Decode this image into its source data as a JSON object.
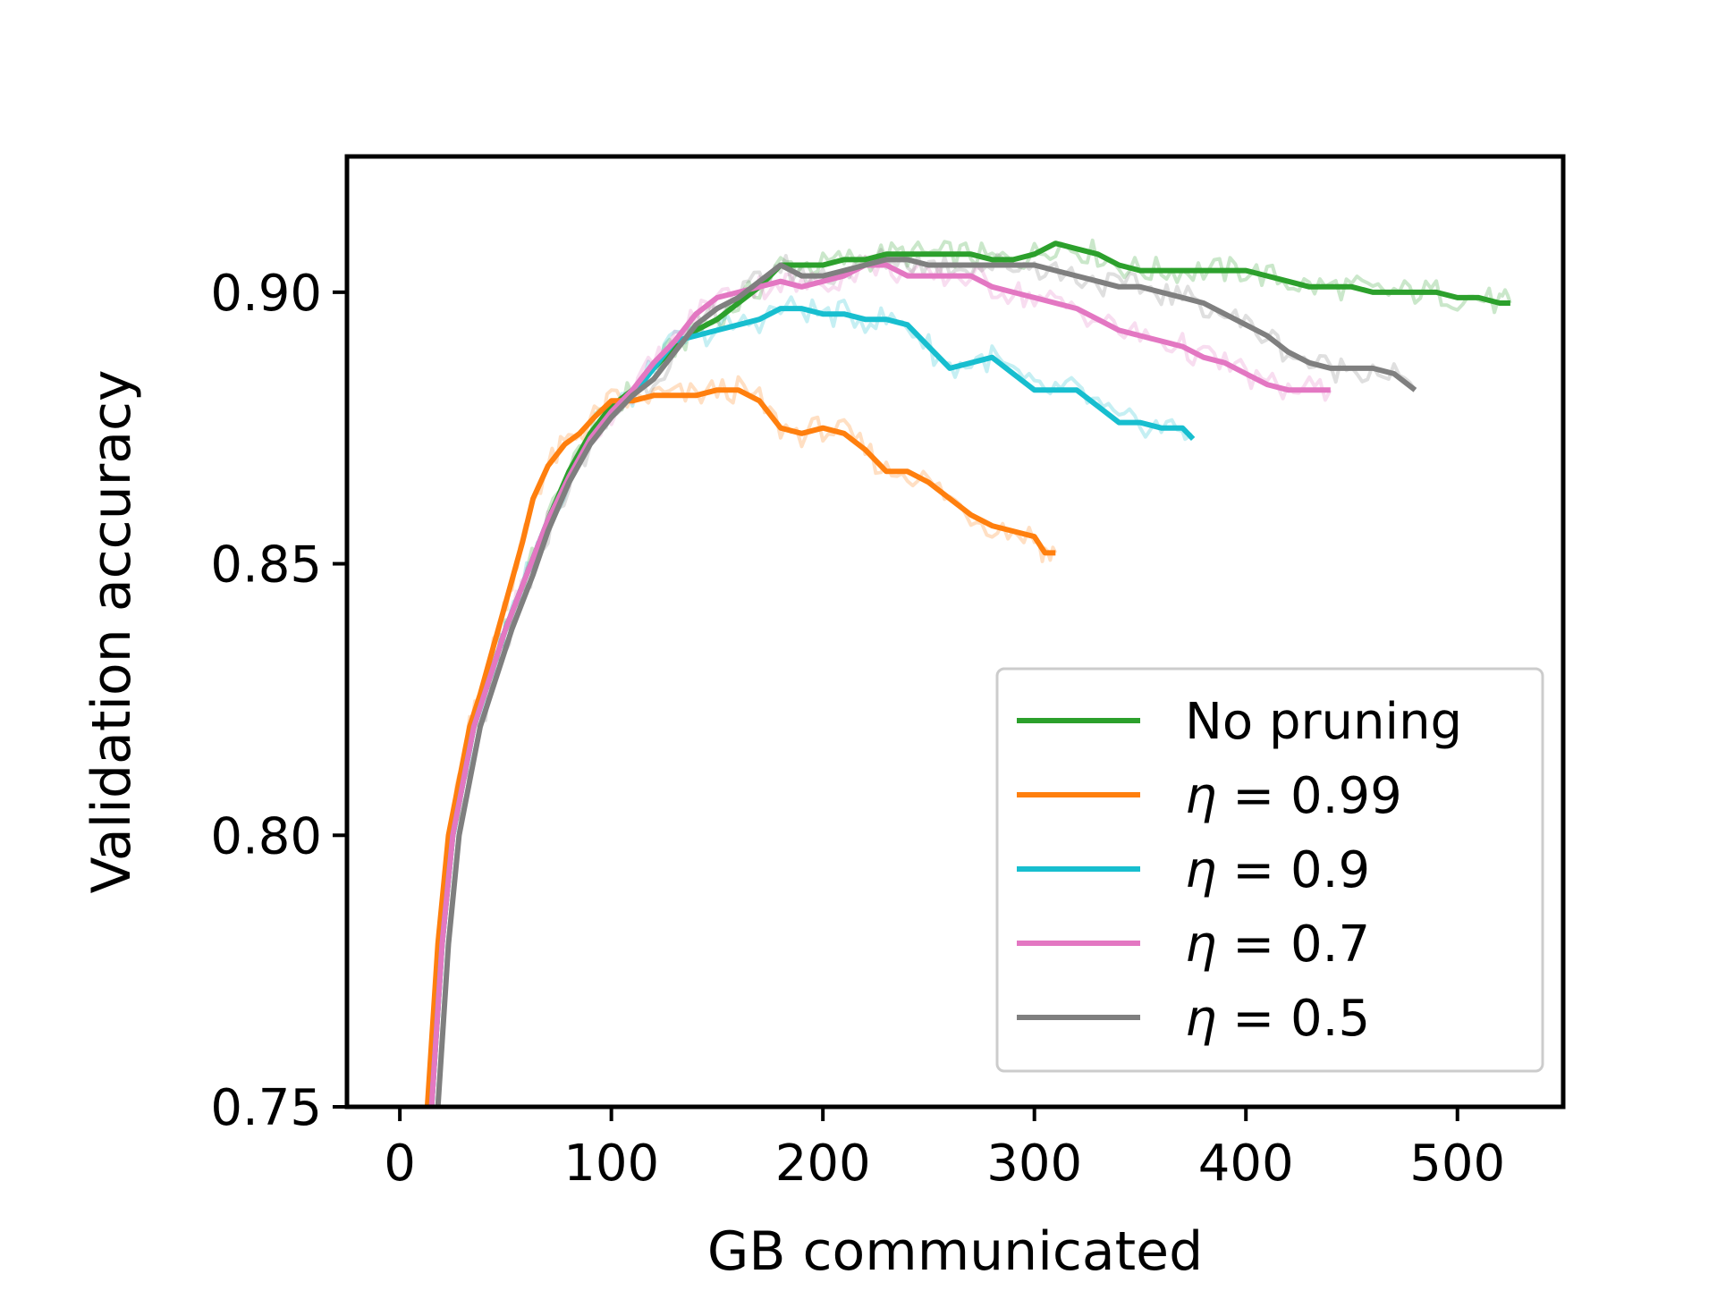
{
  "chart_data": {
    "type": "line",
    "title": "",
    "xlabel": "GB communicated",
    "ylabel": "Validation accuracy",
    "xlim": [
      -25,
      550
    ],
    "ylim": [
      0.75,
      0.925
    ],
    "xticks": [
      0,
      100,
      200,
      300,
      400,
      500
    ],
    "xtick_labels": [
      "0",
      "100",
      "200",
      "300",
      "400",
      "500"
    ],
    "yticks": [
      0.75,
      0.8,
      0.85,
      0.9
    ],
    "ytick_labels": [
      "0.75",
      "0.80",
      "0.85",
      "0.90"
    ],
    "grid": false,
    "legend_position": "lower right",
    "series": [
      {
        "name": "No pruning",
        "legend_prefix": "",
        "legend_value": "No pruning",
        "color": "#2ca02c",
        "x": [
          15,
          20,
          25,
          30,
          35,
          40,
          45,
          50,
          55,
          60,
          70,
          80,
          90,
          100,
          110,
          120,
          130,
          140,
          150,
          160,
          170,
          180,
          190,
          200,
          210,
          220,
          230,
          240,
          250,
          260,
          270,
          280,
          290,
          300,
          310,
          320,
          330,
          340,
          350,
          360,
          370,
          380,
          390,
          400,
          410,
          420,
          430,
          440,
          450,
          460,
          470,
          480,
          490,
          500,
          510,
          520,
          525
        ],
        "y": [
          0.75,
          0.78,
          0.8,
          0.81,
          0.82,
          0.826,
          0.832,
          0.838,
          0.843,
          0.848,
          0.858,
          0.867,
          0.874,
          0.879,
          0.882,
          0.886,
          0.89,
          0.893,
          0.895,
          0.898,
          0.901,
          0.905,
          0.905,
          0.905,
          0.906,
          0.906,
          0.907,
          0.907,
          0.907,
          0.907,
          0.907,
          0.906,
          0.906,
          0.907,
          0.909,
          0.908,
          0.907,
          0.905,
          0.904,
          0.904,
          0.904,
          0.904,
          0.904,
          0.904,
          0.903,
          0.902,
          0.901,
          0.901,
          0.901,
          0.9,
          0.9,
          0.9,
          0.9,
          0.899,
          0.899,
          0.898,
          0.898
        ]
      },
      {
        "name": "η = 0.99",
        "legend_prefix": "η",
        "legend_value": " = 0.99",
        "color": "#ff7f0e",
        "x": [
          13,
          18,
          23,
          28,
          33,
          38,
          43,
          48,
          53,
          58,
          63,
          70,
          78,
          85,
          92,
          100,
          110,
          120,
          130,
          140,
          150,
          160,
          170,
          180,
          190,
          200,
          210,
          220,
          230,
          240,
          250,
          260,
          270,
          280,
          290,
          300,
          305,
          310
        ],
        "y": [
          0.75,
          0.78,
          0.8,
          0.81,
          0.82,
          0.826,
          0.833,
          0.84,
          0.847,
          0.854,
          0.862,
          0.868,
          0.872,
          0.874,
          0.877,
          0.88,
          0.88,
          0.881,
          0.881,
          0.881,
          0.882,
          0.882,
          0.88,
          0.875,
          0.874,
          0.875,
          0.874,
          0.871,
          0.867,
          0.867,
          0.865,
          0.862,
          0.859,
          0.857,
          0.856,
          0.855,
          0.852,
          0.852
        ]
      },
      {
        "name": "η = 0.9",
        "legend_prefix": "η",
        "legend_value": " = 0.9",
        "color": "#17becf",
        "x": [
          15,
          20,
          25,
          30,
          35,
          40,
          45,
          50,
          55,
          60,
          70,
          80,
          90,
          100,
          110,
          120,
          130,
          140,
          150,
          160,
          170,
          180,
          190,
          200,
          210,
          220,
          230,
          240,
          250,
          260,
          270,
          280,
          290,
          300,
          310,
          320,
          330,
          340,
          350,
          360,
          370,
          375
        ],
        "y": [
          0.75,
          0.78,
          0.8,
          0.81,
          0.82,
          0.826,
          0.832,
          0.838,
          0.843,
          0.848,
          0.858,
          0.866,
          0.873,
          0.878,
          0.881,
          0.886,
          0.891,
          0.892,
          0.893,
          0.894,
          0.895,
          0.897,
          0.897,
          0.896,
          0.896,
          0.895,
          0.895,
          0.894,
          0.89,
          0.886,
          0.887,
          0.888,
          0.885,
          0.882,
          0.882,
          0.882,
          0.879,
          0.876,
          0.876,
          0.875,
          0.875,
          0.873
        ]
      },
      {
        "name": "η = 0.7",
        "legend_prefix": "η",
        "legend_value": " = 0.7",
        "color": "#e377c2",
        "x": [
          15,
          20,
          25,
          30,
          35,
          40,
          45,
          50,
          55,
          60,
          70,
          80,
          90,
          100,
          110,
          120,
          130,
          140,
          150,
          160,
          170,
          180,
          190,
          200,
          210,
          220,
          230,
          240,
          250,
          260,
          270,
          280,
          290,
          300,
          310,
          320,
          330,
          340,
          350,
          360,
          370,
          380,
          390,
          400,
          410,
          420,
          430,
          440
        ],
        "y": [
          0.75,
          0.78,
          0.8,
          0.81,
          0.82,
          0.826,
          0.832,
          0.838,
          0.843,
          0.848,
          0.858,
          0.866,
          0.873,
          0.878,
          0.882,
          0.887,
          0.891,
          0.896,
          0.899,
          0.9,
          0.901,
          0.902,
          0.901,
          0.902,
          0.903,
          0.905,
          0.905,
          0.903,
          0.903,
          0.903,
          0.903,
          0.901,
          0.9,
          0.899,
          0.898,
          0.897,
          0.895,
          0.893,
          0.892,
          0.891,
          0.89,
          0.888,
          0.887,
          0.885,
          0.883,
          0.882,
          0.882,
          0.882
        ]
      },
      {
        "name": "η = 0.5",
        "legend_prefix": "η",
        "legend_value": " = 0.5",
        "color": "#7f7f7f",
        "x": [
          18,
          23,
          28,
          33,
          38,
          43,
          48,
          53,
          58,
          63,
          70,
          80,
          90,
          100,
          110,
          120,
          130,
          140,
          150,
          160,
          170,
          180,
          190,
          200,
          210,
          220,
          230,
          240,
          250,
          260,
          270,
          280,
          290,
          300,
          310,
          320,
          330,
          340,
          350,
          360,
          370,
          380,
          390,
          400,
          410,
          420,
          430,
          440,
          450,
          460,
          470,
          480
        ],
        "y": [
          0.75,
          0.78,
          0.8,
          0.81,
          0.82,
          0.826,
          0.832,
          0.838,
          0.843,
          0.848,
          0.856,
          0.865,
          0.872,
          0.877,
          0.881,
          0.884,
          0.889,
          0.894,
          0.897,
          0.899,
          0.902,
          0.905,
          0.903,
          0.903,
          0.904,
          0.905,
          0.906,
          0.906,
          0.905,
          0.905,
          0.905,
          0.905,
          0.905,
          0.905,
          0.904,
          0.903,
          0.902,
          0.901,
          0.901,
          0.9,
          0.899,
          0.898,
          0.896,
          0.894,
          0.892,
          0.889,
          0.887,
          0.886,
          0.886,
          0.886,
          0.885,
          0.882
        ]
      }
    ]
  }
}
